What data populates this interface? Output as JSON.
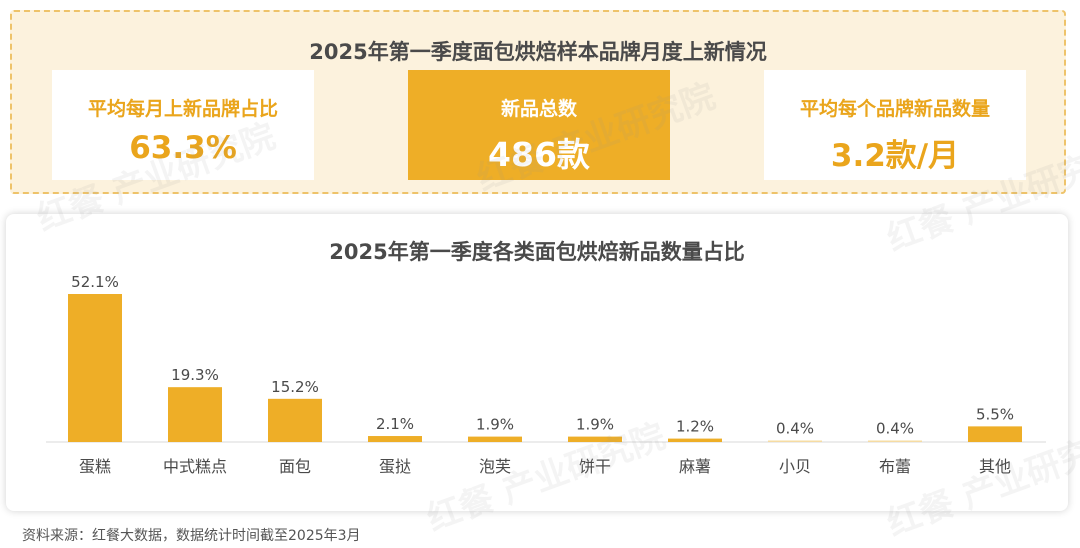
{
  "header": {
    "title": "2025年第一季度面包烘焙样本品牌月度上新情况"
  },
  "kpis": [
    {
      "label": "平均每月上新品牌占比",
      "value": "63.3%"
    },
    {
      "label": "新品总数",
      "value": "486款"
    },
    {
      "label": "平均每个品牌新品数量",
      "value": "3.2款/月"
    }
  ],
  "chart_data": {
    "type": "bar",
    "title": "2025年第一季度各类面包烘焙新品数量占比",
    "categories": [
      "蛋糕",
      "中式糕点",
      "面包",
      "蛋挞",
      "泡芙",
      "饼干",
      "麻薯",
      "小贝",
      "布蕾",
      "其他"
    ],
    "values": [
      52.1,
      19.3,
      15.2,
      2.1,
      1.9,
      1.9,
      1.2,
      0.4,
      0.4,
      5.5
    ],
    "value_labels": [
      "52.1%",
      "19.3%",
      "15.2%",
      "2.1%",
      "1.9%",
      "1.9%",
      "1.2%",
      "0.4%",
      "0.4%",
      "5.5%"
    ],
    "xlabel": "",
    "ylabel": "",
    "ylim": [
      0,
      52.1
    ],
    "grid": false,
    "bar_color": "#eeae27"
  },
  "footer": {
    "source": "资料来源：红餐大数据，数据统计时间截至2025年3月"
  },
  "watermark": {
    "text": "红餐 产业研究院"
  },
  "colors": {
    "accent": "#eeae27",
    "panel_bg": "#fcf2dd",
    "text_dark": "#4a4a4a"
  }
}
